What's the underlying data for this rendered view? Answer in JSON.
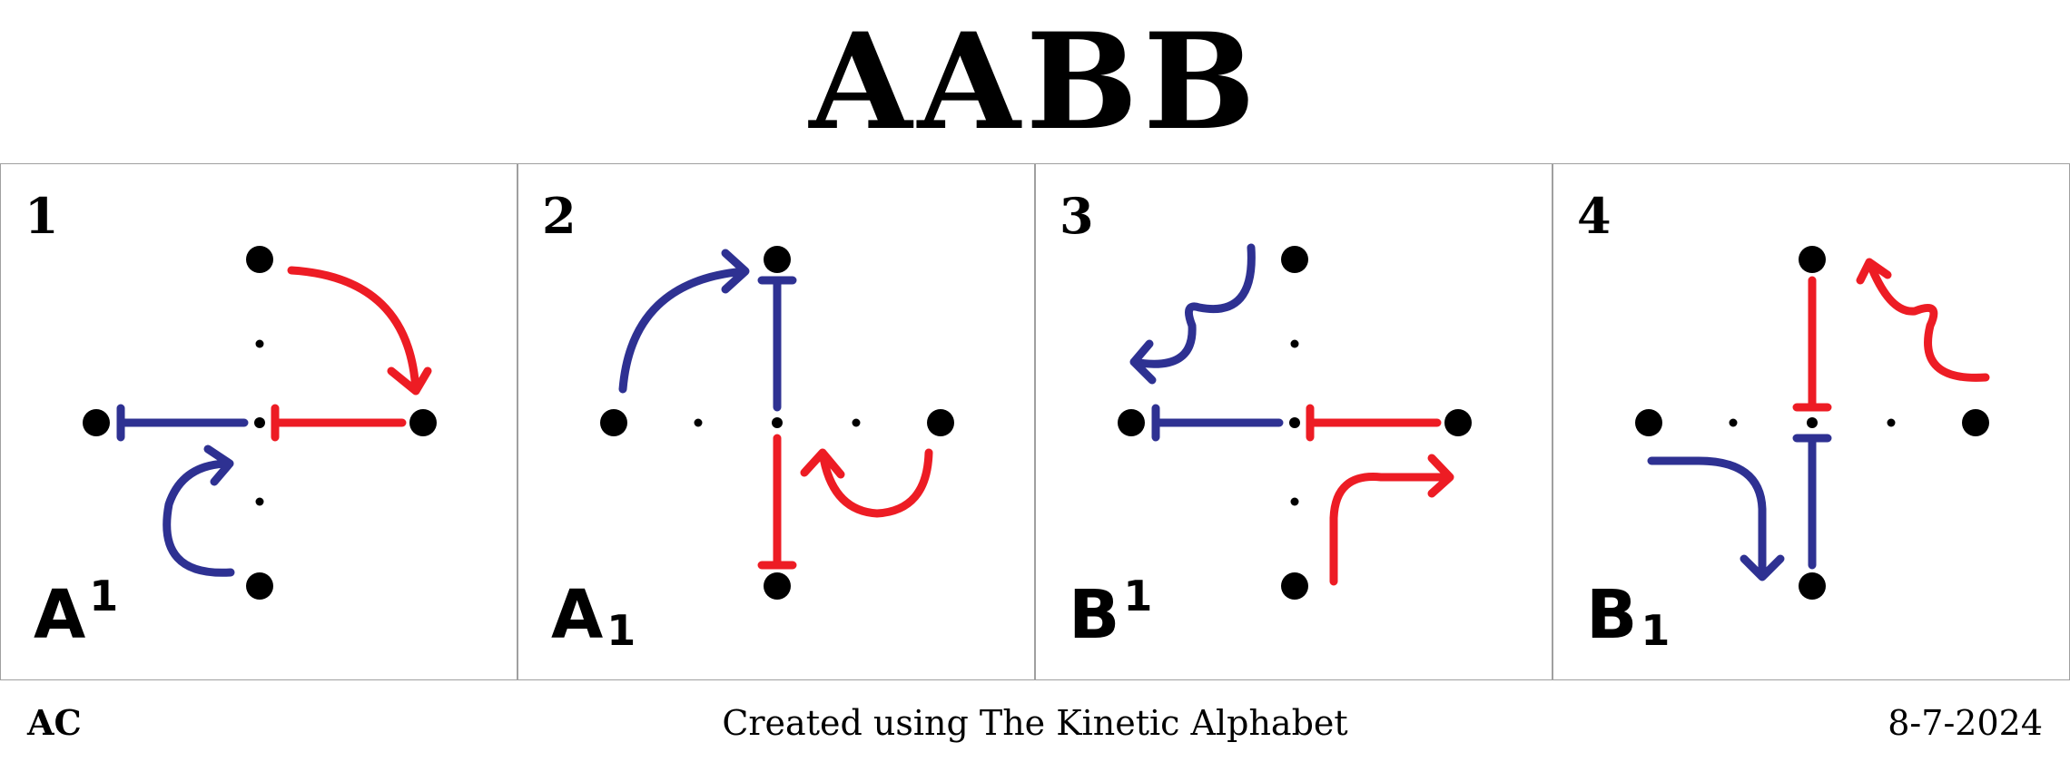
{
  "title": "AABB",
  "panels": [
    {
      "number": "1",
      "letter": "A",
      "mark": "1",
      "mark_position": "superscript"
    },
    {
      "number": "2",
      "letter": "A",
      "mark": "1",
      "mark_position": "subscript"
    },
    {
      "number": "3",
      "letter": "B",
      "mark": "1",
      "mark_position": "superscript"
    },
    {
      "number": "4",
      "letter": "B",
      "mark": "1",
      "mark_position": "subscript"
    }
  ],
  "footer": {
    "left": "AC",
    "center": "Created using The Kinetic Alphabet",
    "right": "8-7-2024"
  },
  "colors": {
    "blue": "#2e3192",
    "red": "#ed1c24",
    "dot": "#000000",
    "border": "#a0a0a0"
  }
}
